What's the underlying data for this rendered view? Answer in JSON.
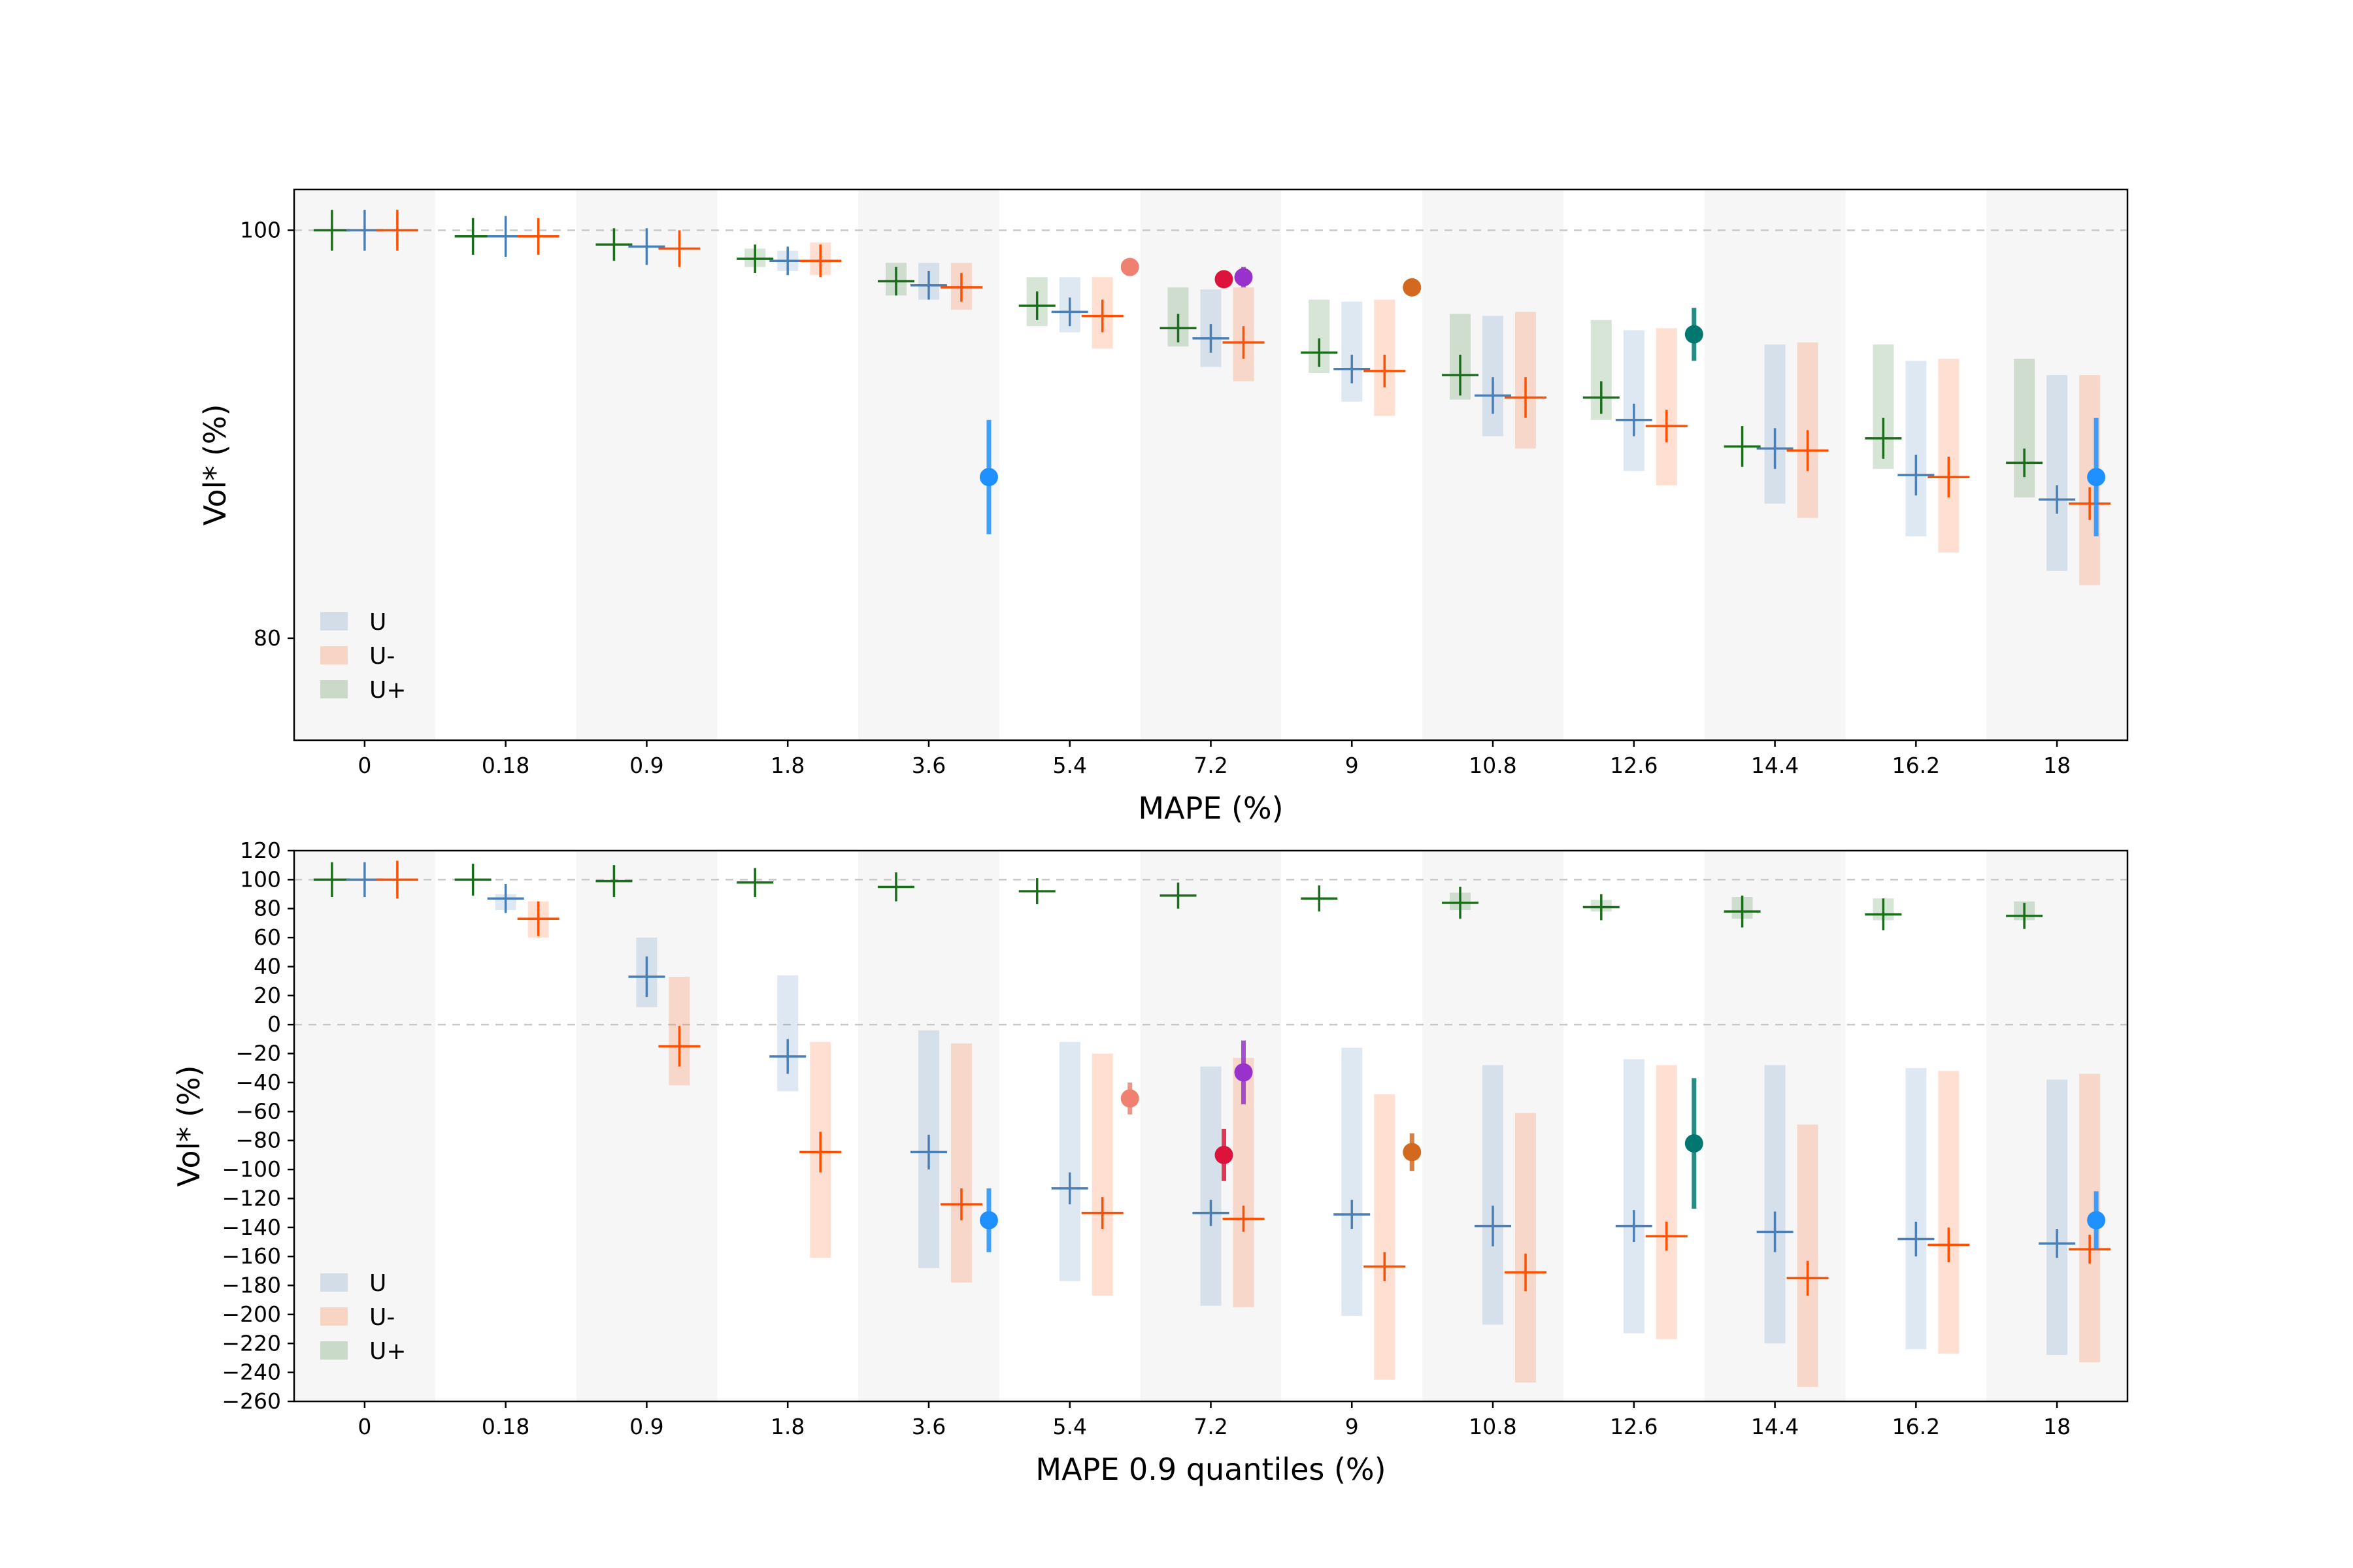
{
  "chart_data": [
    {
      "type": "scatter",
      "xlabel": "MAPE (%)",
      "ylabel": "Vol* (%)",
      "ylim": [
        75,
        102
      ],
      "yticks": [
        80,
        100
      ],
      "categories": [
        "0",
        "0.18",
        "0.9",
        "1.8",
        "3.6",
        "5.4",
        "7.2",
        "9",
        "10.8",
        "12.6",
        "14.4",
        "16.2",
        "18"
      ],
      "reference_lines": [
        100
      ],
      "legend": {
        "placement": "lower-left",
        "entries": [
          "U",
          "U-",
          "U+"
        ]
      },
      "series": [
        {
          "name": "U+",
          "color": "#1a6e1a",
          "values": [
            100,
            99.7,
            99.3,
            98.6,
            97.5,
            96.3,
            95.2,
            94.0,
            92.9,
            91.8,
            89.4,
            89.8,
            88.6
          ],
          "err": [
            1.0,
            0.9,
            0.8,
            0.7,
            0.7,
            0.7,
            0.7,
            0.7,
            1.0,
            0.8,
            1.0,
            1.0,
            0.7
          ],
          "band": [
            null,
            null,
            null,
            [
              98.2,
              99.1
            ],
            [
              96.8,
              98.4
            ],
            [
              95.3,
              97.7
            ],
            [
              94.3,
              97.2
            ],
            [
              93.0,
              96.6
            ],
            [
              91.7,
              95.9
            ],
            [
              90.7,
              95.6
            ],
            null,
            [
              88.3,
              94.4
            ],
            [
              86.9,
              93.7
            ]
          ]
        },
        {
          "name": "U",
          "color": "#4a7fb5",
          "values": [
            100,
            99.7,
            99.2,
            98.5,
            97.3,
            96.0,
            94.7,
            93.2,
            91.9,
            90.7,
            89.3,
            88.0,
            86.8
          ],
          "err": [
            1.0,
            1.0,
            0.9,
            0.7,
            0.7,
            0.7,
            0.7,
            0.7,
            0.9,
            0.8,
            1.0,
            1.0,
            0.7
          ],
          "band": [
            null,
            null,
            null,
            [
              98.0,
              99.0
            ],
            [
              96.6,
              98.4
            ],
            [
              95.0,
              97.7
            ],
            [
              93.3,
              97.1
            ],
            [
              91.6,
              96.5
            ],
            [
              89.9,
              95.8
            ],
            [
              88.2,
              95.1
            ],
            [
              86.6,
              94.4
            ],
            [
              85.0,
              93.6
            ],
            [
              83.3,
              92.9
            ]
          ]
        },
        {
          "name": "U-",
          "color": "#ff4f00",
          "values": [
            100,
            99.7,
            99.1,
            98.5,
            97.2,
            95.8,
            94.5,
            93.1,
            91.8,
            90.4,
            89.2,
            87.9,
            86.6
          ],
          "err": [
            1.0,
            0.9,
            0.9,
            0.8,
            0.7,
            0.8,
            0.8,
            0.8,
            1.0,
            0.8,
            1.0,
            1.0,
            0.8
          ],
          "band": [
            null,
            null,
            null,
            [
              97.8,
              99.4
            ],
            [
              96.1,
              98.4
            ],
            [
              94.2,
              97.7
            ],
            [
              92.6,
              97.2
            ],
            [
              90.9,
              96.6
            ],
            [
              89.3,
              96.0
            ],
            [
              87.5,
              95.2
            ],
            [
              85.9,
              94.5
            ],
            [
              84.2,
              93.7
            ],
            [
              82.6,
              92.9
            ]
          ]
        }
      ],
      "markers": [
        {
          "index": 4,
          "value": 87.9,
          "err": 2.8,
          "color": "#1e90ff"
        },
        {
          "index": 5,
          "value": 98.2,
          "err": 0,
          "color": "#f08070"
        },
        {
          "index": 6,
          "value": 97.6,
          "err": 0,
          "color": "#dc143c"
        },
        {
          "index": 6,
          "value": 97.7,
          "err": 0.5,
          "color": "#9932cc"
        },
        {
          "index": 7,
          "value": 97.2,
          "err": 0,
          "color": "#d2691e"
        },
        {
          "index": 9,
          "value": 94.9,
          "err": 1.3,
          "color": "#00786f"
        },
        {
          "index": 12,
          "value": 87.9,
          "err": 2.9,
          "color": "#1e90ff"
        }
      ]
    },
    {
      "type": "scatter",
      "xlabel": "MAPE 0.9 quantiles (%)",
      "ylabel": "Vol* (%)",
      "ylim": [
        -260,
        120
      ],
      "yticks": [
        120,
        100,
        80,
        60,
        40,
        20,
        0,
        -20,
        -40,
        -60,
        -80,
        -100,
        -120,
        -140,
        -160,
        -180,
        -200,
        -220,
        -240,
        -260
      ],
      "categories": [
        "0",
        "0.18",
        "0.9",
        "1.8",
        "3.6",
        "5.4",
        "7.2",
        "9",
        "10.8",
        "12.6",
        "14.4",
        "16.2",
        "18"
      ],
      "reference_lines": [
        100,
        0
      ],
      "legend": {
        "placement": "lower-left",
        "entries": [
          "U",
          "U-",
          "U+"
        ]
      },
      "series": [
        {
          "name": "U+",
          "color": "#1a6e1a",
          "values": [
            100,
            100,
            99,
            98,
            95,
            92,
            89,
            87,
            84,
            81,
            78,
            76,
            75
          ],
          "err": [
            12,
            11,
            11,
            10,
            10,
            9,
            9,
            9,
            11,
            9,
            11,
            11,
            9
          ],
          "band": [
            null,
            null,
            null,
            null,
            null,
            null,
            null,
            null,
            [
              79,
              91
            ],
            [
              78,
              86
            ],
            [
              73,
              88
            ],
            [
              72,
              87
            ],
            [
              72,
              85
            ]
          ]
        },
        {
          "name": "U",
          "color": "#4a7fb5",
          "values": [
            100,
            87,
            33,
            -22,
            -88,
            -113,
            -130,
            -131,
            -139,
            -139,
            -143,
            -148,
            -151
          ],
          "err": [
            12,
            10,
            14,
            12,
            12,
            11,
            9,
            10,
            14,
            11,
            14,
            12,
            10
          ],
          "band": [
            null,
            [
              79,
              90
            ],
            [
              12,
              60
            ],
            [
              -46,
              34
            ],
            [
              -168,
              -4
            ],
            [
              -177,
              -12
            ],
            [
              -194,
              -29
            ],
            [
              -201,
              -16
            ],
            [
              -207,
              -28
            ],
            [
              -213,
              -24
            ],
            [
              -220,
              -28
            ],
            [
              -224,
              -30
            ],
            [
              -228,
              -38
            ]
          ]
        },
        {
          "name": "U-",
          "color": "#ff4f00",
          "values": [
            100,
            73,
            -15,
            -88,
            -124,
            -130,
            -134,
            -167,
            -171,
            -146,
            -175,
            -152,
            -155
          ],
          "err": [
            13,
            12,
            14,
            14,
            11,
            11,
            9,
            10,
            13,
            10,
            12,
            12,
            10
          ],
          "band": [
            null,
            [
              60,
              85
            ],
            [
              -42,
              33
            ],
            [
              -161,
              -12
            ],
            [
              -178,
              -13
            ],
            [
              -187,
              -20
            ],
            [
              -195,
              -23
            ],
            [
              -245,
              -48
            ],
            [
              -247,
              -61
            ],
            [
              -217,
              -28
            ],
            [
              -250,
              -69
            ],
            [
              -227,
              -32
            ],
            [
              -233,
              -34
            ]
          ]
        }
      ],
      "markers": [
        {
          "index": 4,
          "value": -135,
          "err": 22,
          "color": "#1e90ff"
        },
        {
          "index": 5,
          "value": -51,
          "err": 11,
          "color": "#f08070"
        },
        {
          "index": 6,
          "value": -90,
          "err": 18,
          "color": "#dc143c"
        },
        {
          "index": 6,
          "value": -33,
          "err": 22,
          "color": "#9932cc"
        },
        {
          "index": 7,
          "value": -88,
          "err": 13,
          "color": "#d2691e"
        },
        {
          "index": 9,
          "value": -82,
          "err": 45,
          "color": "#00786f"
        },
        {
          "index": 12,
          "value": -135,
          "err": 20,
          "color": "#1e90ff"
        }
      ]
    }
  ]
}
